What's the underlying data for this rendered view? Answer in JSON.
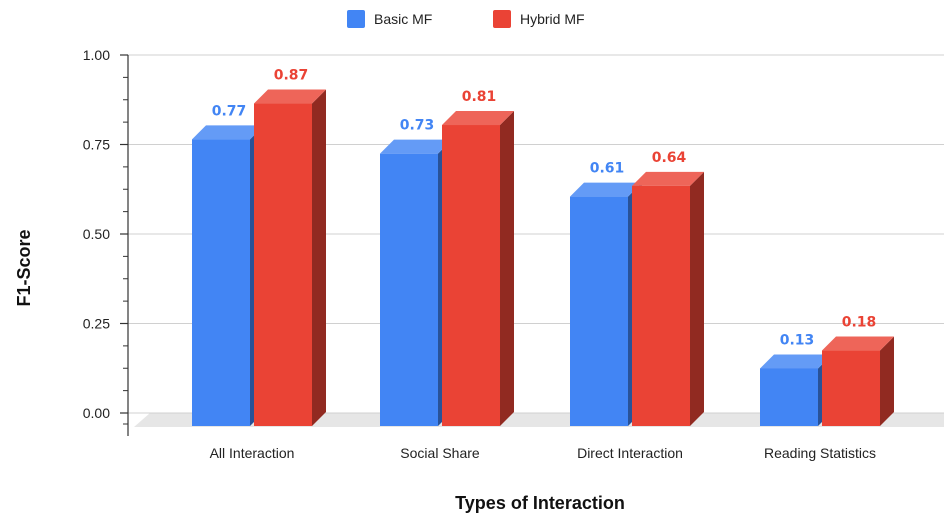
{
  "chart_data": {
    "type": "bar",
    "categories": [
      "All Interaction",
      "Social Share",
      "Direct Interaction",
      "Reading Statistics"
    ],
    "series": [
      {
        "name": "Basic MF",
        "values": [
          0.77,
          0.73,
          0.61,
          0.13
        ],
        "labels": [
          "0.77",
          "0.73",
          "0.61",
          "0.13"
        ],
        "color": "#4285F4"
      },
      {
        "name": "Hybrid MF",
        "values": [
          0.87,
          0.81,
          0.64,
          0.18
        ],
        "labels": [
          "0.87",
          "0.81",
          "0.64",
          "0.18"
        ],
        "color": "#EA4335"
      }
    ],
    "xlabel": "Types of Interaction",
    "ylabel": "F1-Score",
    "ylim": [
      0,
      1
    ],
    "yticks": [
      "0.00",
      "0.25",
      "0.50",
      "0.75",
      "1.00"
    ],
    "legend_position": "top",
    "grid": true,
    "style": "3d"
  }
}
